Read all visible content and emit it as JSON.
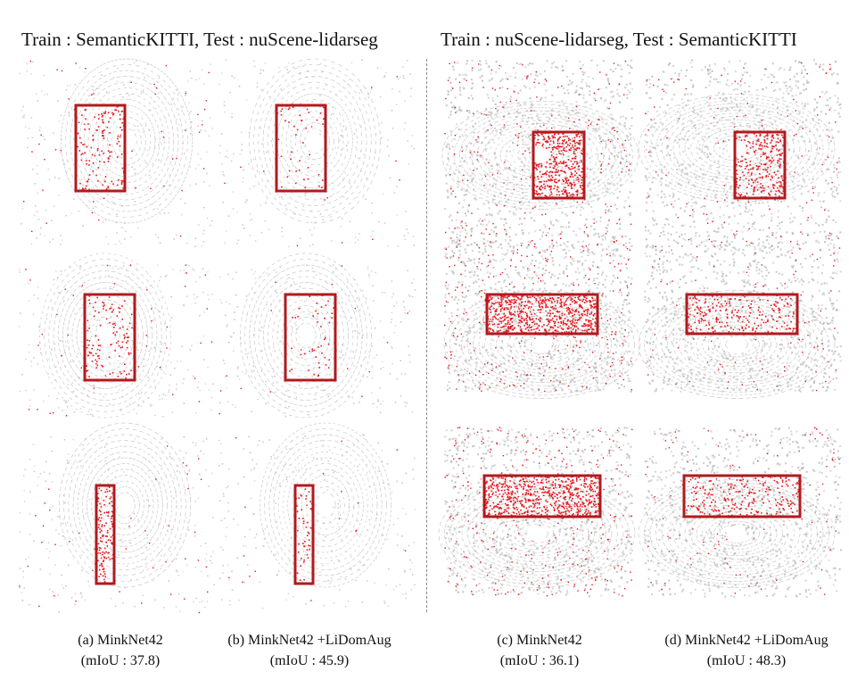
{
  "figure": {
    "left_header": "Train : SemanticKITTI, Test : nuScene-lidarseg",
    "right_header": "Train : nuScene-lidarseg, Test : SemanticKITTI",
    "captions": [
      {
        "label": "(a)   MinkNet42",
        "metric": "(mIoU : 37.8)"
      },
      {
        "label": "(b) MinkNet42 +LiDomAug",
        "metric": "(mIoU : 45.9)"
      },
      {
        "label": "(c) MinkNet42",
        "metric": "(mIoU : 36.1)"
      },
      {
        "label": "(d) MinkNet42 +LiDomAug",
        "metric": "(mIoU : 48.3)"
      }
    ],
    "colors": {
      "error_points": "#e8141c",
      "correct_points": "#bfbfbf",
      "highlight_box": "#b01a1e",
      "divider": "#888888"
    }
  }
}
